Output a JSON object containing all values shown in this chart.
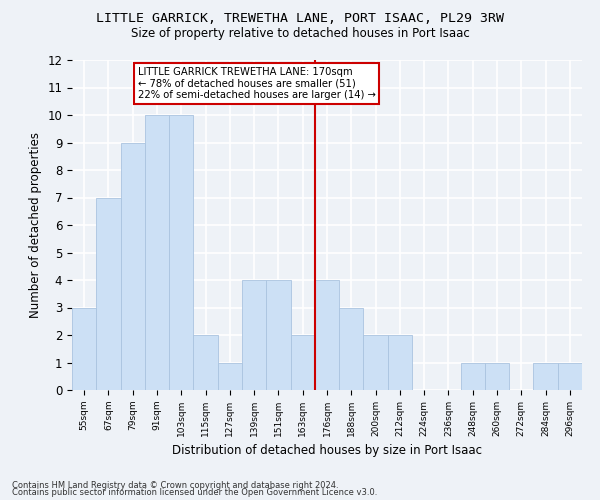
{
  "title": "LITTLE GARRICK, TREWETHA LANE, PORT ISAAC, PL29 3RW",
  "subtitle": "Size of property relative to detached houses in Port Isaac",
  "xlabel": "Distribution of detached houses by size in Port Isaac",
  "ylabel": "Number of detached properties",
  "bar_labels": [
    "55sqm",
    "67sqm",
    "79sqm",
    "91sqm",
    "103sqm",
    "115sqm",
    "127sqm",
    "139sqm",
    "151sqm",
    "163sqm",
    "176sqm",
    "188sqm",
    "200sqm",
    "212sqm",
    "224sqm",
    "236sqm",
    "248sqm",
    "260sqm",
    "272sqm",
    "284sqm",
    "296sqm"
  ],
  "bar_values": [
    3,
    7,
    9,
    10,
    10,
    2,
    1,
    4,
    4,
    2,
    4,
    3,
    2,
    2,
    0,
    0,
    1,
    1,
    0,
    1,
    1
  ],
  "bar_color": "#cce0f5",
  "bar_edge_color": "#aac4e0",
  "vline_color": "#cc0000",
  "annotation_text": "LITTLE GARRICK TREWETHA LANE: 170sqm\n← 78% of detached houses are smaller (51)\n22% of semi-detached houses are larger (14) →",
  "annotation_box_color": "#cc0000",
  "ylim": [
    0,
    12
  ],
  "yticks": [
    0,
    1,
    2,
    3,
    4,
    5,
    6,
    7,
    8,
    9,
    10,
    11,
    12
  ],
  "footnote1": "Contains HM Land Registry data © Crown copyright and database right 2024.",
  "footnote2": "Contains public sector information licensed under the Open Government Licence v3.0.",
  "background_color": "#eef2f7",
  "grid_color": "#ffffff"
}
